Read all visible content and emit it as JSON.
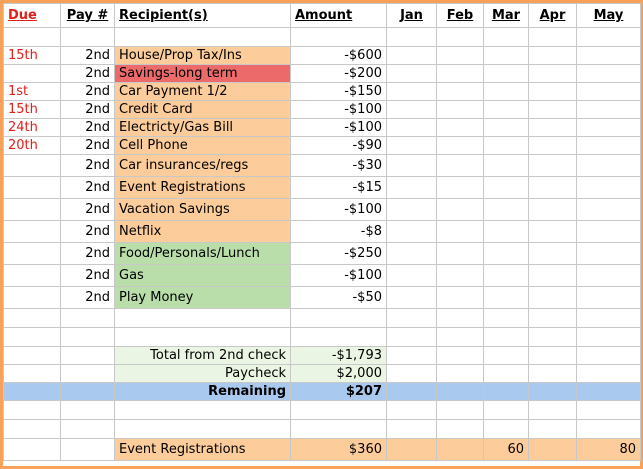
{
  "headers": {
    "due": "Due",
    "pay": "Pay #",
    "recipient": "Recipient(s)",
    "amount": "Amount",
    "jan": "Jan",
    "feb": "Feb",
    "mar": "Mar",
    "apr": "Apr",
    "may": "May"
  },
  "rows": [
    {
      "due": "15th",
      "pay": "2nd",
      "recipient": "House/Prop Tax/Ins",
      "amount": "-$600"
    },
    {
      "due": "",
      "pay": "2nd",
      "recipient": "Savings-long term",
      "amount": "-$200"
    },
    {
      "due": "1st",
      "pay": "2nd",
      "recipient": "Car Payment 1/2",
      "amount": "-$150"
    },
    {
      "due": "15th",
      "pay": "2nd",
      "recipient": "Credit Card",
      "amount": "-$100"
    },
    {
      "due": "24th",
      "pay": "2nd",
      "recipient": "Electricty/Gas Bill",
      "amount": "-$100"
    },
    {
      "due": "20th",
      "pay": "2nd",
      "recipient": "Cell Phone",
      "amount": "-$90"
    },
    {
      "due": "",
      "pay": "2nd",
      "recipient": "Car insurances/regs",
      "amount": "-$30"
    },
    {
      "due": "",
      "pay": "2nd",
      "recipient": "Event Registrations",
      "amount": "-$15"
    },
    {
      "due": "",
      "pay": "2nd",
      "recipient": "Vacation Savings",
      "amount": "-$100"
    },
    {
      "due": "",
      "pay": "2nd",
      "recipient": "Netflix",
      "amount": "-$8"
    },
    {
      "due": "",
      "pay": "2nd",
      "recipient": "Food/Personals/Lunch",
      "amount": "-$250"
    },
    {
      "due": "",
      "pay": "2nd",
      "recipient": "Gas",
      "amount": "-$100"
    },
    {
      "due": "",
      "pay": "2nd",
      "recipient": "Play Money",
      "amount": "-$50"
    }
  ],
  "summary": {
    "total_label": "Total from 2nd check",
    "total_value": "-$1,793",
    "paycheck_label": "Paycheck",
    "paycheck_value": "$2,000",
    "remaining_label": "Remaining",
    "remaining_value": "$207"
  },
  "event": {
    "label": "Event Registrations",
    "amount": "$360",
    "mar": "60",
    "may": "80"
  },
  "colors": {
    "frame": "#f7a15a",
    "peach": "#fdcc9b",
    "pink": "#ec6a6a",
    "green": "#b9deaa",
    "light_green": "#ebf5e3",
    "blue": "#a9c9ef",
    "due_red": "#e0201a"
  }
}
